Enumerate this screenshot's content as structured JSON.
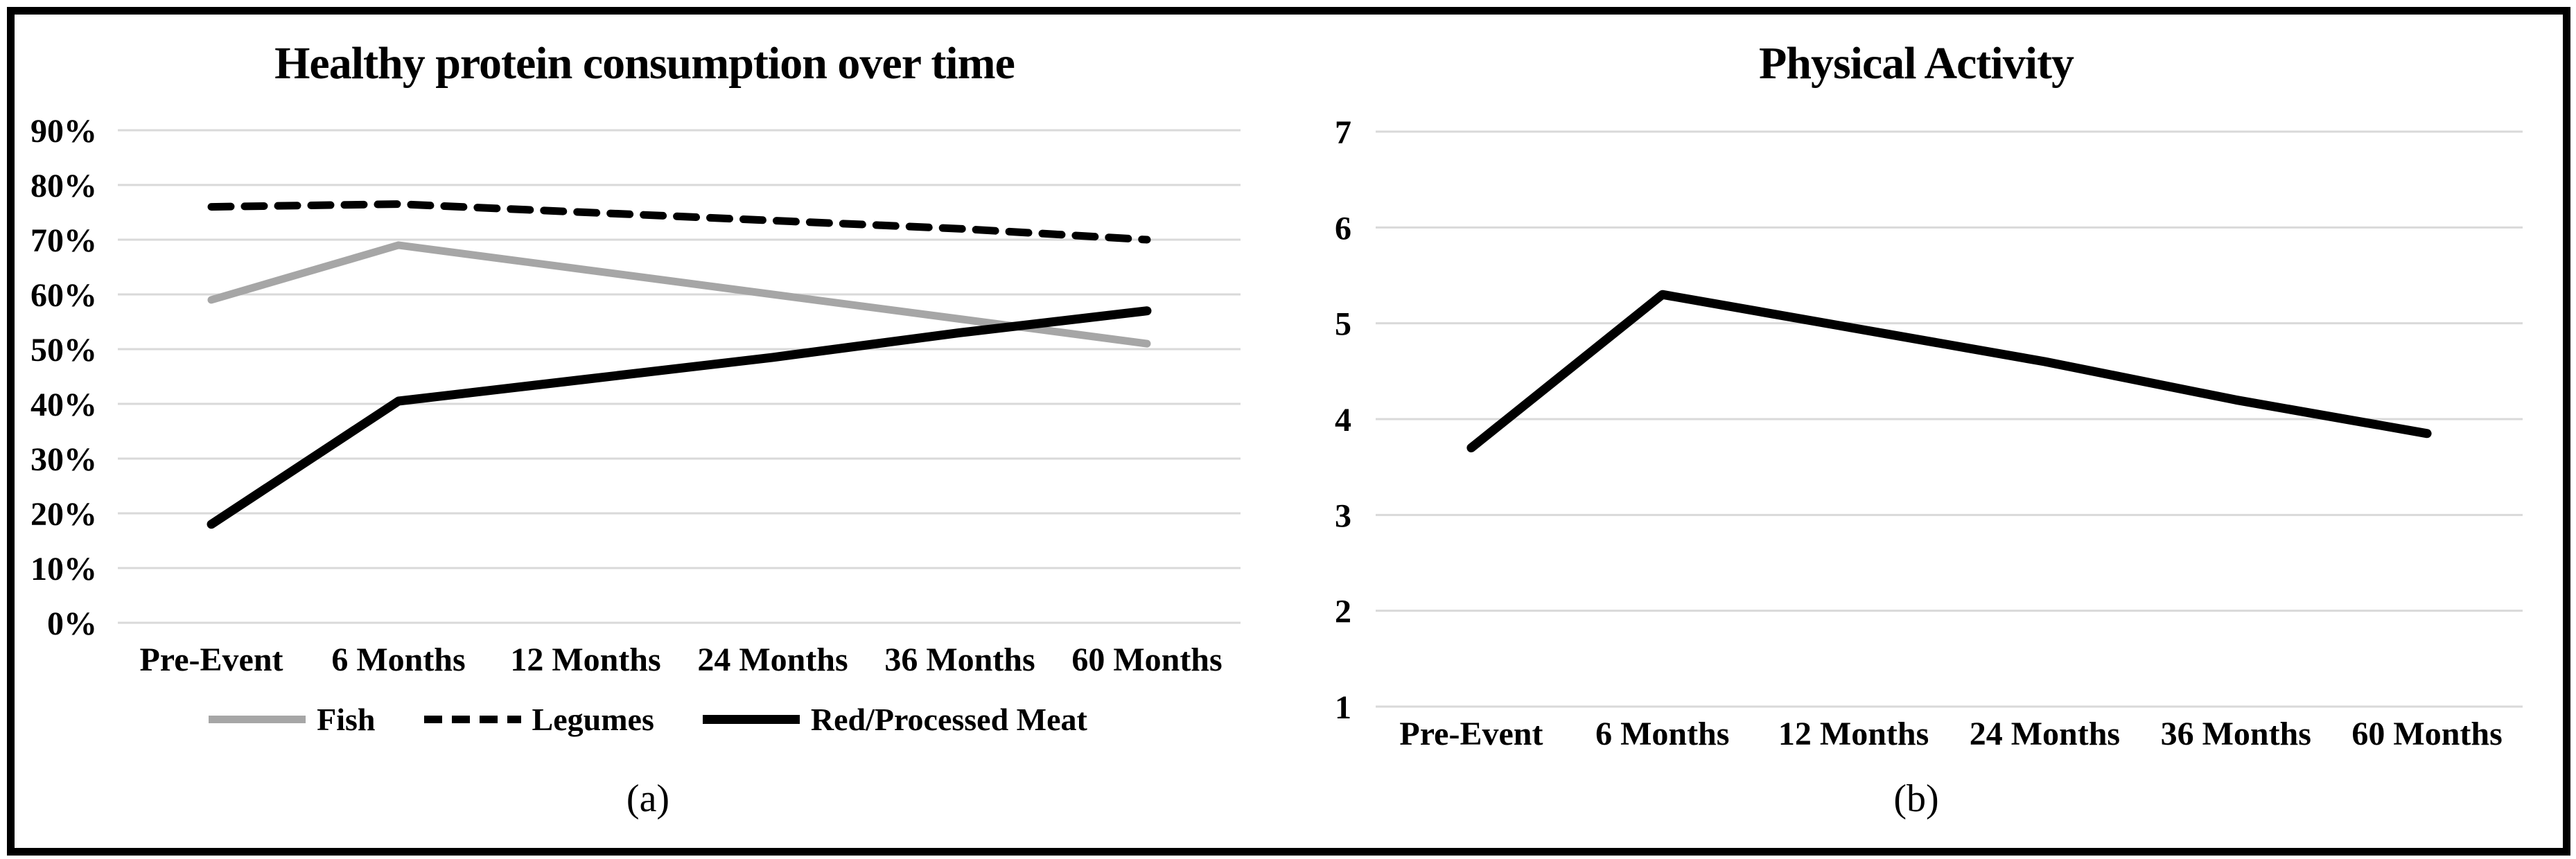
{
  "style": {
    "background": "#ffffff",
    "frame_color": "#000000",
    "gridline_color": "#d9d9d9",
    "text_color": "#000000"
  },
  "chart_data": [
    {
      "type": "line",
      "title": "Healthy protein consumption over time",
      "caption": "(a)",
      "categories": [
        "Pre-Event",
        "6 Months",
        "12 Months",
        "24 Months",
        "36 Months",
        "60 Months"
      ],
      "y_tick_labels": [
        "90%",
        "80%",
        "70%",
        "60%",
        "50%",
        "40%",
        "30%",
        "20%",
        "10%",
        "0%"
      ],
      "ylim": [
        0,
        90
      ],
      "grid": true,
      "legend_position": "bottom",
      "series": [
        {
          "name": "Fish",
          "color": "#a6a6a6",
          "dash": null,
          "width": 11,
          "values": [
            59,
            69,
            64.5,
            60,
            55.5,
            51
          ]
        },
        {
          "name": "Legumes",
          "color": "#000000",
          "dash": "28 20",
          "width": 11,
          "values": [
            76,
            76.5,
            75,
            73.5,
            72,
            70
          ]
        },
        {
          "name": "Red/Processed Meat",
          "color": "#000000",
          "dash": null,
          "width": 13,
          "values": [
            18,
            40.5,
            44.5,
            48.5,
            53,
            57
          ]
        }
      ]
    },
    {
      "type": "line",
      "title": "Physical Activity",
      "caption": "(b)",
      "categories": [
        "Pre-Event",
        "6 Months",
        "12 Months",
        "24 Months",
        "36 Months",
        "60 Months"
      ],
      "y_tick_labels": [
        "7",
        "6",
        "5",
        "4",
        "3",
        "2",
        "1"
      ],
      "ylim": [
        1,
        7
      ],
      "grid": true,
      "legend_position": "none",
      "series": [
        {
          "name": "Physical Activity",
          "color": "#000000",
          "dash": null,
          "width": 13,
          "values": [
            3.7,
            5.3,
            4.95,
            4.6,
            4.2,
            3.85
          ]
        }
      ]
    }
  ]
}
